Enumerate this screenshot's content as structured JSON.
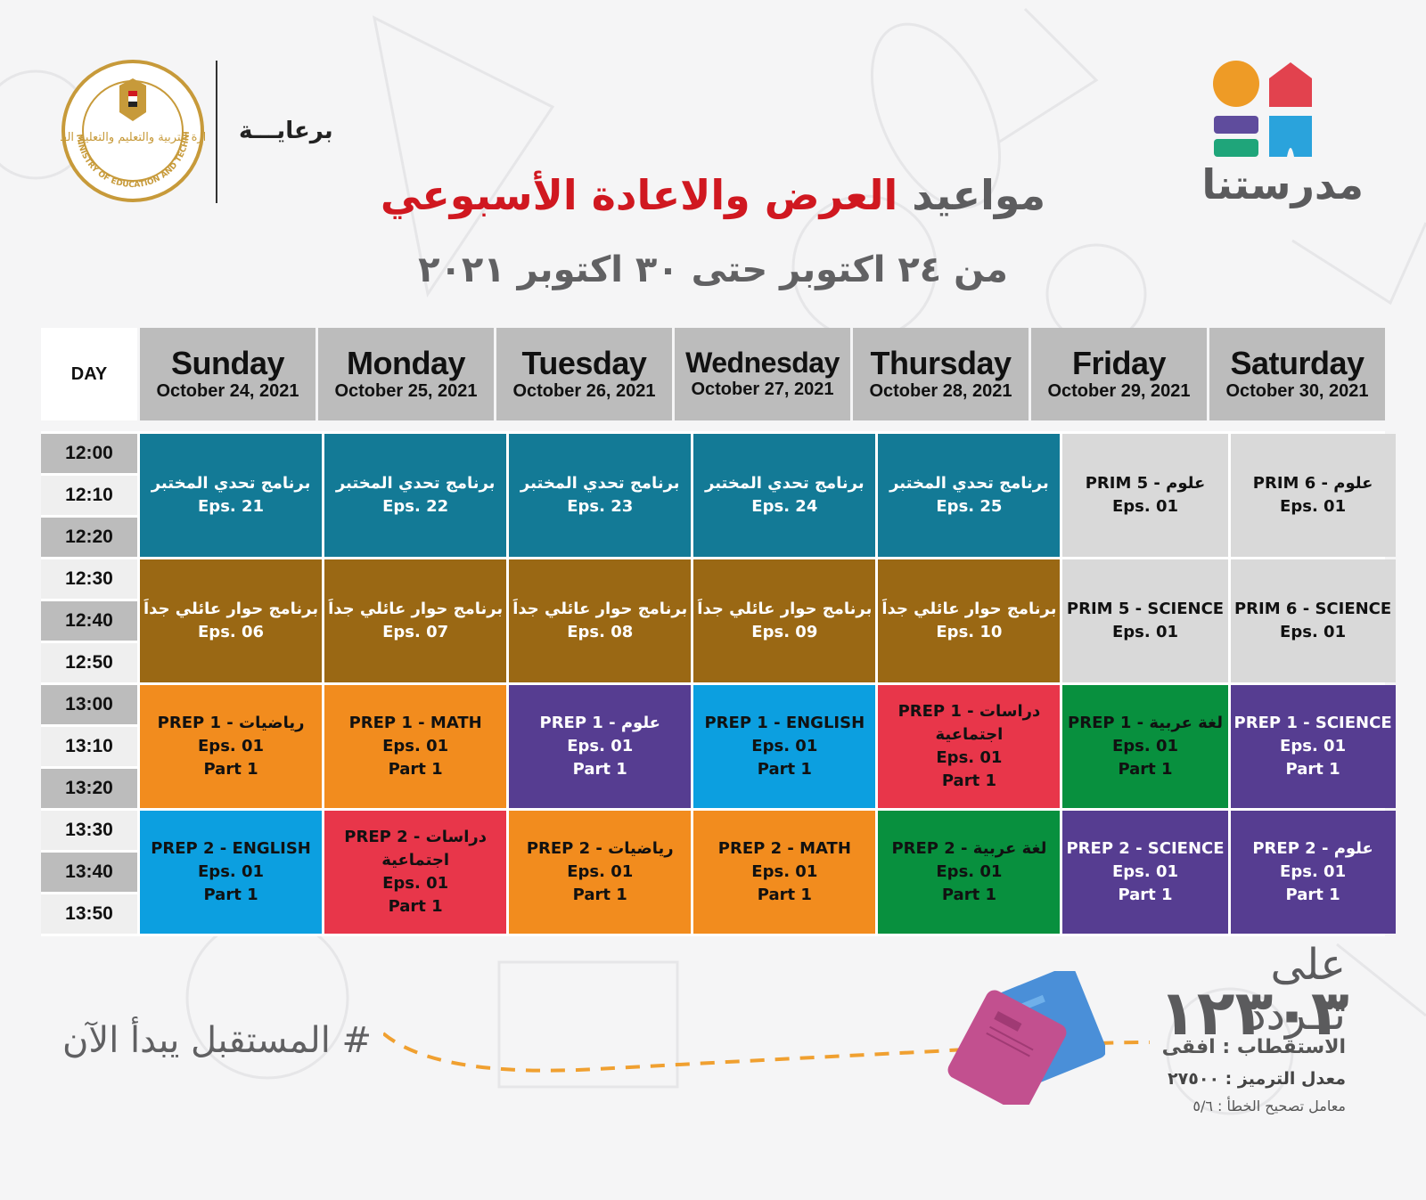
{
  "header": {
    "sponsor_label": "برعايـــة",
    "ministry_logo_text": "MINISTRY OF EDUCATION AND TECHNICAL EDUCATION",
    "ministry_logo_arabic": "وزارة التربية والتعليم والتعليم الفني",
    "brand_name": "مدرستنا",
    "title_part1": "مواعيد",
    "title_part2": "العرض والاعادة الأسبوعي",
    "subtitle": "من ٢٤ اكتوبر حتى ٣٠ اكتوبر ٢٠٢١"
  },
  "colors": {
    "teal": "#137a96",
    "brown": "#9a6814",
    "gray": "#d9d9d9",
    "orange": "#f28c1e",
    "purple": "#563d91",
    "blue": "#0c9fe0",
    "red": "#e8364a",
    "green": "#08903e",
    "title_red": "#d01820"
  },
  "schedule": {
    "day_label": "DAY",
    "days": [
      {
        "name": "Sunday",
        "date": "October 24, 2021"
      },
      {
        "name": "Monday",
        "date": "October 25, 2021"
      },
      {
        "name": "Tuesday",
        "date": "October 26, 2021"
      },
      {
        "name": "Wednesday",
        "date": "October 27, 2021"
      },
      {
        "name": "Thursday",
        "date": "October 28, 2021"
      },
      {
        "name": "Friday",
        "date": "October 29, 2021"
      },
      {
        "name": "Saturday",
        "date": "October 30, 2021"
      }
    ],
    "times": [
      "12:00",
      "12:10",
      "12:20",
      "12:30",
      "12:40",
      "12:50",
      "13:00",
      "13:10",
      "13:20",
      "13:30",
      "13:40",
      "13:50"
    ],
    "blocks": [
      [
        {
          "title": "برنامج تحدي المختبر",
          "eps": "Eps. 21",
          "color": "teal"
        },
        {
          "title": "برنامج تحدي المختبر",
          "eps": "Eps. 22",
          "color": "teal"
        },
        {
          "title": "برنامج تحدي المختبر",
          "eps": "Eps. 23",
          "color": "teal"
        },
        {
          "title": "برنامج تحدي المختبر",
          "eps": "Eps. 24",
          "color": "teal"
        },
        {
          "title": "برنامج تحدي المختبر",
          "eps": "Eps. 25",
          "color": "teal"
        },
        {
          "title": "PRIM 5 - علوم",
          "eps": "Eps. 01",
          "color": "gray"
        },
        {
          "title": "PRIM 6 - علوم",
          "eps": "Eps. 01",
          "color": "gray"
        }
      ],
      [
        {
          "title": "برنامج حوار عائلي جداَ",
          "eps": "Eps. 06",
          "color": "brown"
        },
        {
          "title": "برنامج حوار عائلي جداَ",
          "eps": "Eps. 07",
          "color": "brown"
        },
        {
          "title": "برنامج حوار عائلي جداَ",
          "eps": "Eps. 08",
          "color": "brown"
        },
        {
          "title": "برنامج حوار عائلي جداَ",
          "eps": "Eps. 09",
          "color": "brown"
        },
        {
          "title": "برنامج حوار عائلي جداَ",
          "eps": "Eps. 10",
          "color": "brown"
        },
        {
          "title": "PRIM 5 - SCIENCE",
          "eps": "Eps. 01",
          "color": "gray"
        },
        {
          "title": "PRIM 6 - SCIENCE",
          "eps": "Eps. 01",
          "color": "gray"
        }
      ],
      [
        {
          "title": "PREP 1 - رياضيات",
          "eps": "Eps. 01",
          "part": "Part 1",
          "color": "orange"
        },
        {
          "title": "PREP 1 - MATH",
          "eps": "Eps. 01",
          "part": "Part 1",
          "color": "orange"
        },
        {
          "title": "PREP 1 - علوم",
          "eps": "Eps. 01",
          "part": "Part 1",
          "color": "purple"
        },
        {
          "title": "PREP 1 - ENGLISH",
          "eps": "Eps. 01",
          "part": "Part 1",
          "color": "blue"
        },
        {
          "title": "PREP 1 - دراسات اجتماعية",
          "eps": "Eps. 01",
          "part": "Part 1",
          "color": "red"
        },
        {
          "title": "PREP 1 - لغة عربية",
          "eps": "Eps. 01",
          "part": "Part 1",
          "color": "green"
        },
        {
          "title": "PREP 1 - SCIENCE",
          "eps": "Eps. 01",
          "part": "Part 1",
          "color": "purple"
        }
      ],
      [
        {
          "title": "PREP 2 - ENGLISH",
          "eps": "Eps. 01",
          "part": "Part 1",
          "color": "blue"
        },
        {
          "title": "PREP 2 - دراسات اجتماعية",
          "eps": "Eps. 01",
          "part": "Part 1",
          "color": "red"
        },
        {
          "title": "PREP 2 - رياضيات",
          "eps": "Eps. 01",
          "part": "Part 1",
          "color": "orange"
        },
        {
          "title": "PREP 2 - MATH",
          "eps": "Eps. 01",
          "part": "Part 1",
          "color": "orange"
        },
        {
          "title": "PREP 2 - لغة عربية",
          "eps": "Eps. 01",
          "part": "Part 1",
          "color": "green"
        },
        {
          "title": "PREP 2 - SCIENCE",
          "eps": "Eps. 01",
          "part": "Part 1",
          "color": "purple"
        },
        {
          "title": "PREP 2 - علوم",
          "eps": "Eps. 01",
          "part": "Part 1",
          "color": "purple"
        }
      ]
    ]
  },
  "footer": {
    "hashtag": "# المستقبل يبدأ الآن",
    "frequency_label": "على تــردد",
    "frequency_value": "١٢٣٠٣",
    "polarization": "الاستقطاب : افقى",
    "symbol_rate": "معدل الترميز : ٢٧٥٠٠",
    "fec": "معامل تصحيح الخطأ : ٥/٦"
  }
}
